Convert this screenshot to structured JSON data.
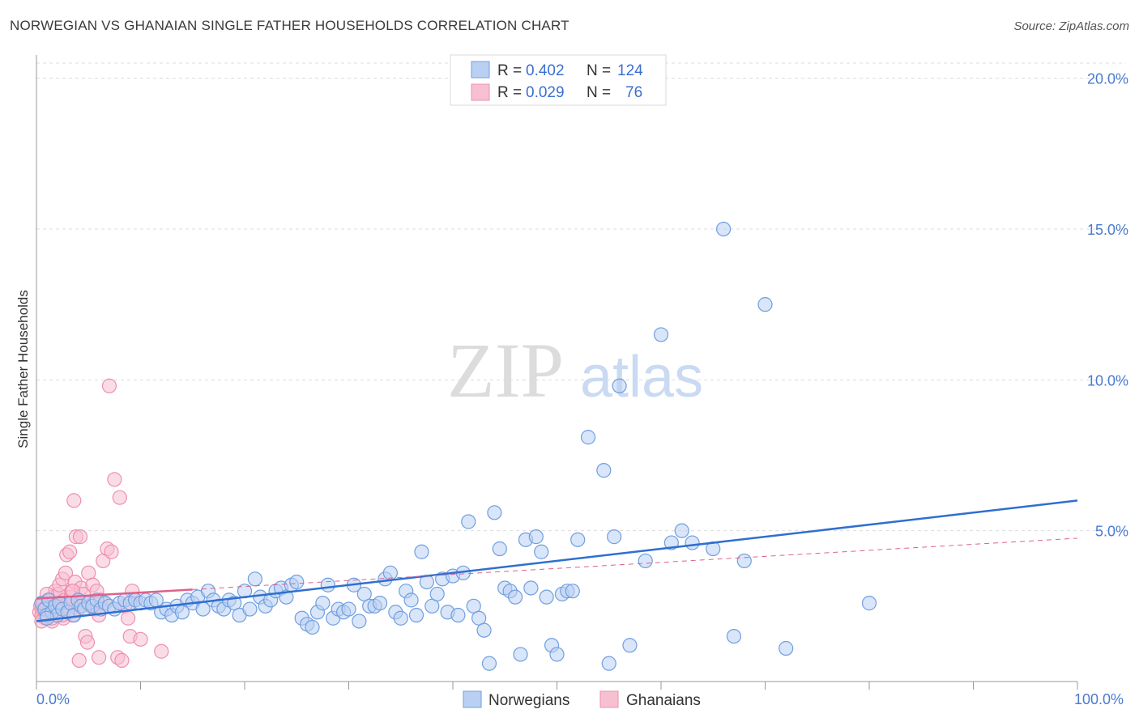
{
  "title": "NORWEGIAN VS GHANAIAN SINGLE FATHER HOUSEHOLDS CORRELATION CHART",
  "source": "Source: ZipAtlas.com",
  "watermark": {
    "zip": "ZIP",
    "atlas": "atlas"
  },
  "colors": {
    "blue": "#6f9fe0",
    "blue_fill": "#b9d0f3",
    "blue_line": "#2f6fd0",
    "pink": "#ef8fae",
    "pink_fill": "#f6c0d1",
    "pink_line": "#e0608a",
    "grid": "#dcdcdc",
    "tick_text": "#4a7bd0"
  },
  "legend": {
    "rows": [
      {
        "r_label": "R = ",
        "r_value": "0.402",
        "n_label": "N = ",
        "n_value": "124",
        "series": "Norwegians"
      },
      {
        "r_label": "R = ",
        "r_value": "0.029",
        "n_label": "N = ",
        "n_value": "76",
        "series": "Ghanaians"
      }
    ]
  },
  "chart_data": {
    "type": "scatter",
    "title": "NORWEGIAN VS GHANAIAN SINGLE FATHER HOUSEHOLDS CORRELATION CHART",
    "xlabel": "",
    "ylabel": "Single Father Households",
    "xlim": [
      0,
      100
    ],
    "ylim": [
      0,
      20.5
    ],
    "x_tick_labels": [
      "0.0%",
      "100.0%"
    ],
    "y_ticks": [
      5,
      10,
      15,
      20
    ],
    "y_tick_labels": [
      "5.0%",
      "10.0%",
      "15.0%",
      "20.0%"
    ],
    "legend_position": "top-center",
    "series": [
      {
        "name": "Norwegians",
        "R": 0.402,
        "N": 124,
        "trend": {
          "x": [
            0,
            100
          ],
          "y": [
            2.0,
            6.0
          ],
          "style": "solid"
        },
        "points": [
          [
            0.5,
            2.6
          ],
          [
            0.8,
            2.4
          ],
          [
            1.0,
            2.2
          ],
          [
            1.2,
            2.7
          ],
          [
            1.5,
            2.3
          ],
          [
            1.8,
            2.5
          ],
          [
            2.0,
            2.2
          ],
          [
            2.2,
            2.6
          ],
          [
            2.5,
            2.4
          ],
          [
            3.0,
            2.3
          ],
          [
            3.3,
            2.6
          ],
          [
            3.6,
            2.2
          ],
          [
            4.0,
            2.7
          ],
          [
            4.3,
            2.5
          ],
          [
            4.6,
            2.4
          ],
          [
            5.0,
            2.6
          ],
          [
            5.4,
            2.5
          ],
          [
            5.8,
            2.7
          ],
          [
            6.2,
            2.4
          ],
          [
            6.6,
            2.6
          ],
          [
            7.0,
            2.5
          ],
          [
            7.5,
            2.4
          ],
          [
            8.0,
            2.6
          ],
          [
            8.5,
            2.7
          ],
          [
            9.0,
            2.6
          ],
          [
            9.5,
            2.7
          ],
          [
            10.0,
            2.6
          ],
          [
            10.5,
            2.7
          ],
          [
            11.0,
            2.6
          ],
          [
            11.5,
            2.7
          ],
          [
            12.0,
            2.3
          ],
          [
            12.5,
            2.4
          ],
          [
            13.0,
            2.2
          ],
          [
            13.5,
            2.5
          ],
          [
            14.0,
            2.3
          ],
          [
            14.5,
            2.7
          ],
          [
            15.0,
            2.6
          ],
          [
            15.5,
            2.8
          ],
          [
            16.0,
            2.4
          ],
          [
            16.5,
            3.0
          ],
          [
            17.0,
            2.7
          ],
          [
            17.5,
            2.5
          ],
          [
            18.0,
            2.4
          ],
          [
            18.5,
            2.7
          ],
          [
            19.0,
            2.6
          ],
          [
            19.5,
            2.2
          ],
          [
            20.0,
            3.0
          ],
          [
            20.5,
            2.4
          ],
          [
            21.0,
            3.4
          ],
          [
            21.5,
            2.8
          ],
          [
            22.0,
            2.5
          ],
          [
            22.5,
            2.7
          ],
          [
            23.0,
            3.0
          ],
          [
            23.5,
            3.1
          ],
          [
            24.0,
            2.8
          ],
          [
            24.5,
            3.2
          ],
          [
            25.0,
            3.3
          ],
          [
            25.5,
            2.1
          ],
          [
            26.0,
            1.9
          ],
          [
            26.5,
            1.8
          ],
          [
            27.0,
            2.3
          ],
          [
            27.5,
            2.6
          ],
          [
            28.0,
            3.2
          ],
          [
            28.5,
            2.1
          ],
          [
            29.0,
            2.4
          ],
          [
            29.5,
            2.3
          ],
          [
            30.0,
            2.4
          ],
          [
            30.5,
            3.2
          ],
          [
            31.0,
            2.0
          ],
          [
            31.5,
            2.9
          ],
          [
            32.0,
            2.5
          ],
          [
            32.5,
            2.5
          ],
          [
            33.0,
            2.6
          ],
          [
            33.5,
            3.4
          ],
          [
            34.0,
            3.6
          ],
          [
            34.5,
            2.3
          ],
          [
            35.0,
            2.1
          ],
          [
            35.5,
            3.0
          ],
          [
            36.0,
            2.7
          ],
          [
            36.5,
            2.2
          ],
          [
            37.0,
            4.3
          ],
          [
            37.5,
            3.3
          ],
          [
            38.0,
            2.5
          ],
          [
            38.5,
            2.9
          ],
          [
            39.0,
            3.4
          ],
          [
            39.5,
            2.3
          ],
          [
            40.0,
            3.5
          ],
          [
            40.5,
            2.2
          ],
          [
            41.0,
            3.6
          ],
          [
            41.5,
            5.3
          ],
          [
            42.0,
            2.5
          ],
          [
            42.5,
            2.1
          ],
          [
            43.0,
            1.7
          ],
          [
            43.5,
            0.6
          ],
          [
            44.0,
            5.6
          ],
          [
            44.5,
            4.4
          ],
          [
            45.0,
            3.1
          ],
          [
            45.5,
            3.0
          ],
          [
            46.0,
            2.8
          ],
          [
            46.5,
            0.9
          ],
          [
            47.0,
            4.7
          ],
          [
            47.5,
            3.1
          ],
          [
            48.0,
            4.8
          ],
          [
            48.5,
            4.3
          ],
          [
            49.0,
            2.8
          ],
          [
            49.5,
            1.2
          ],
          [
            50.0,
            0.9
          ],
          [
            50.5,
            2.9
          ],
          [
            51.0,
            3.0
          ],
          [
            51.5,
            3.0
          ],
          [
            52.0,
            4.7
          ],
          [
            53.0,
            8.1
          ],
          [
            54.5,
            7.0
          ],
          [
            55.0,
            0.6
          ],
          [
            55.5,
            4.8
          ],
          [
            56.0,
            9.8
          ],
          [
            57.0,
            1.2
          ],
          [
            58.5,
            4.0
          ],
          [
            60.0,
            11.5
          ],
          [
            61.0,
            4.6
          ],
          [
            62.0,
            5.0
          ],
          [
            63.0,
            4.6
          ],
          [
            65.0,
            4.4
          ],
          [
            66.0,
            15.0
          ],
          [
            67.0,
            1.5
          ],
          [
            68.0,
            4.0
          ],
          [
            70.0,
            12.5
          ],
          [
            72.0,
            1.1
          ],
          [
            80.0,
            2.6
          ],
          [
            1.0,
            2.1
          ]
        ]
      },
      {
        "name": "Ghanaians",
        "R": 0.029,
        "N": 76,
        "trend": {
          "x": [
            0,
            100
          ],
          "y": [
            2.75,
            4.75
          ],
          "style": "solid_short_then_dashed",
          "solid_until_x": 15
        },
        "points": [
          [
            0.3,
            2.3
          ],
          [
            0.4,
            2.5
          ],
          [
            0.5,
            2.2
          ],
          [
            0.6,
            2.4
          ],
          [
            0.7,
            2.6
          ],
          [
            0.8,
            2.1
          ],
          [
            0.9,
            2.3
          ],
          [
            1.0,
            2.5
          ],
          [
            1.1,
            2.7
          ],
          [
            1.2,
            2.2
          ],
          [
            1.3,
            2.4
          ],
          [
            1.4,
            2.6
          ],
          [
            1.5,
            2.0
          ],
          [
            1.6,
            2.8
          ],
          [
            1.7,
            2.3
          ],
          [
            1.8,
            3.0
          ],
          [
            1.9,
            2.5
          ],
          [
            2.0,
            2.2
          ],
          [
            2.1,
            2.9
          ],
          [
            2.2,
            3.2
          ],
          [
            2.3,
            2.4
          ],
          [
            2.4,
            2.6
          ],
          [
            2.5,
            3.4
          ],
          [
            2.6,
            2.1
          ],
          [
            2.7,
            2.7
          ],
          [
            2.8,
            3.6
          ],
          [
            2.9,
            4.2
          ],
          [
            3.0,
            2.3
          ],
          [
            3.1,
            2.5
          ],
          [
            3.2,
            4.3
          ],
          [
            3.3,
            2.8
          ],
          [
            3.4,
            3.0
          ],
          [
            3.5,
            2.2
          ],
          [
            3.6,
            6.0
          ],
          [
            3.7,
            3.3
          ],
          [
            3.8,
            4.8
          ],
          [
            3.9,
            2.6
          ],
          [
            4.0,
            2.4
          ],
          [
            4.1,
            0.7
          ],
          [
            4.2,
            4.8
          ],
          [
            4.3,
            3.1
          ],
          [
            4.5,
            2.9
          ],
          [
            4.7,
            1.5
          ],
          [
            4.9,
            1.3
          ],
          [
            5.0,
            3.6
          ],
          [
            5.2,
            2.5
          ],
          [
            5.4,
            3.2
          ],
          [
            5.6,
            2.4
          ],
          [
            5.8,
            3.0
          ],
          [
            6.0,
            2.2
          ],
          [
            6.2,
            2.7
          ],
          [
            6.4,
            4.0
          ],
          [
            6.6,
            2.6
          ],
          [
            6.8,
            4.4
          ],
          [
            7.0,
            9.8
          ],
          [
            7.2,
            4.3
          ],
          [
            7.5,
            6.7
          ],
          [
            7.8,
            0.8
          ],
          [
            8.0,
            6.1
          ],
          [
            8.2,
            0.7
          ],
          [
            8.5,
            2.5
          ],
          [
            8.8,
            2.1
          ],
          [
            9.0,
            1.5
          ],
          [
            9.2,
            3.0
          ],
          [
            9.5,
            2.7
          ],
          [
            10.0,
            1.4
          ],
          [
            0.5,
            2.0
          ],
          [
            1.0,
            2.9
          ],
          [
            1.5,
            2.1
          ],
          [
            2.0,
            2.4
          ],
          [
            2.5,
            2.2
          ],
          [
            3.0,
            2.6
          ],
          [
            3.5,
            3.0
          ],
          [
            4.0,
            2.4
          ],
          [
            12.0,
            1.0
          ],
          [
            6.0,
            0.8
          ]
        ]
      }
    ]
  },
  "bottom_legend": [
    {
      "label": "Norwegians",
      "series": "Norwegians"
    },
    {
      "label": "Ghanaians",
      "series": "Ghanaians"
    }
  ]
}
